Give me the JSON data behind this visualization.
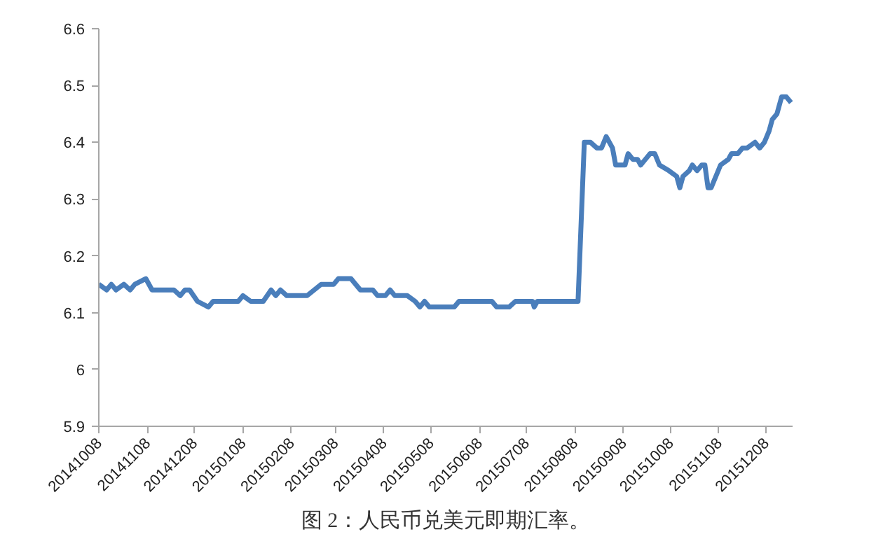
{
  "chart_data": {
    "type": "line",
    "annotations": [
      "图 2：人民币兑美元即期汇率。"
    ],
    "x": [
      "2014-10-08",
      "2014-10-13",
      "2014-10-16",
      "2014-10-19",
      "2014-10-24",
      "2014-10-28",
      "2014-10-31",
      "2014-11-07",
      "2014-11-11",
      "2014-11-25",
      "2014-11-29",
      "2014-12-02",
      "2014-12-05",
      "2014-12-10",
      "2014-12-17",
      "2014-12-20",
      "2015-01-05",
      "2015-01-08",
      "2015-01-13",
      "2015-01-21",
      "2015-01-26",
      "2015-01-29",
      "2015-02-01",
      "2015-02-05",
      "2015-02-18",
      "2015-02-27",
      "2015-03-07",
      "2015-03-10",
      "2015-03-18",
      "2015-03-24",
      "2015-04-01",
      "2015-04-04",
      "2015-04-09",
      "2015-04-12",
      "2015-04-15",
      "2015-04-23",
      "2015-04-28",
      "2015-05-01",
      "2015-05-04",
      "2015-05-07",
      "2015-05-12",
      "2015-05-23",
      "2015-05-26",
      "2015-06-16",
      "2015-06-19",
      "2015-06-27",
      "2015-07-01",
      "2015-07-12",
      "2015-07-13",
      "2015-07-15",
      "2015-08-10",
      "2015-08-14",
      "2015-08-18",
      "2015-08-22",
      "2015-08-25",
      "2015-08-28",
      "2015-09-01",
      "2015-09-03",
      "2015-09-09",
      "2015-09-11",
      "2015-09-14",
      "2015-09-17",
      "2015-09-19",
      "2015-09-22",
      "2015-09-25",
      "2015-09-28",
      "2015-10-01",
      "2015-10-07",
      "2015-10-12",
      "2015-10-14",
      "2015-10-16",
      "2015-10-20",
      "2015-10-22",
      "2015-10-25",
      "2015-10-28",
      "2015-10-30",
      "2015-11-01",
      "2015-11-03",
      "2015-11-06",
      "2015-11-09",
      "2015-11-14",
      "2015-11-16",
      "2015-11-20",
      "2015-11-23",
      "2015-11-26",
      "2015-12-01",
      "2015-12-04",
      "2015-12-07",
      "2015-12-10",
      "2015-12-12",
      "2015-12-15",
      "2015-12-18",
      "2015-12-21",
      "2015-12-24"
    ],
    "series": [
      {
        "color": "#4a7ebb",
        "values": [
          6.15,
          6.14,
          6.15,
          6.14,
          6.15,
          6.14,
          6.15,
          6.16,
          6.14,
          6.14,
          6.13,
          6.14,
          6.14,
          6.12,
          6.11,
          6.12,
          6.12,
          6.13,
          6.12,
          6.12,
          6.14,
          6.13,
          6.14,
          6.13,
          6.13,
          6.15,
          6.15,
          6.16,
          6.16,
          6.14,
          6.14,
          6.13,
          6.13,
          6.14,
          6.13,
          6.13,
          6.12,
          6.11,
          6.12,
          6.11,
          6.11,
          6.11,
          6.12,
          6.12,
          6.11,
          6.11,
          6.12,
          6.12,
          6.11,
          6.12,
          6.12,
          6.4,
          6.4,
          6.39,
          6.39,
          6.41,
          6.39,
          6.36,
          6.36,
          6.38,
          6.37,
          6.37,
          6.36,
          6.37,
          6.38,
          6.38,
          6.36,
          6.35,
          6.34,
          6.32,
          6.34,
          6.35,
          6.36,
          6.35,
          6.36,
          6.36,
          6.32,
          6.32,
          6.34,
          6.36,
          6.37,
          6.38,
          6.38,
          6.39,
          6.39,
          6.4,
          6.39,
          6.4,
          6.42,
          6.44,
          6.45,
          6.48,
          6.48,
          6.47
        ]
      }
    ],
    "xlim": [
      "2014-10-08",
      "2015-12-25"
    ],
    "xticks": [
      {
        "value": "2014-10-08",
        "label": "20141008"
      },
      {
        "value": "2014-11-08",
        "label": "20141108"
      },
      {
        "value": "2014-12-08",
        "label": "20141208"
      },
      {
        "value": "2015-01-08",
        "label": "20150108"
      },
      {
        "value": "2015-02-08",
        "label": "20150208"
      },
      {
        "value": "2015-03-08",
        "label": "20150308"
      },
      {
        "value": "2015-04-08",
        "label": "20150408"
      },
      {
        "value": "2015-05-08",
        "label": "20150508"
      },
      {
        "value": "2015-06-08",
        "label": "20150608"
      },
      {
        "value": "2015-07-08",
        "label": "20150708"
      },
      {
        "value": "2015-08-08",
        "label": "20150808"
      },
      {
        "value": "2015-09-08",
        "label": "20150908"
      },
      {
        "value": "2015-10-08",
        "label": "20151008"
      },
      {
        "value": "2015-11-08",
        "label": "20151108"
      },
      {
        "value": "2015-12-08",
        "label": "20151208"
      }
    ],
    "ylim": [
      5.9,
      6.6
    ],
    "yticks": [
      5.9,
      6,
      6.1,
      6.2,
      6.3,
      6.4,
      6.5,
      6.6
    ],
    "grid": false,
    "marker": "none",
    "line_style": "solid"
  }
}
